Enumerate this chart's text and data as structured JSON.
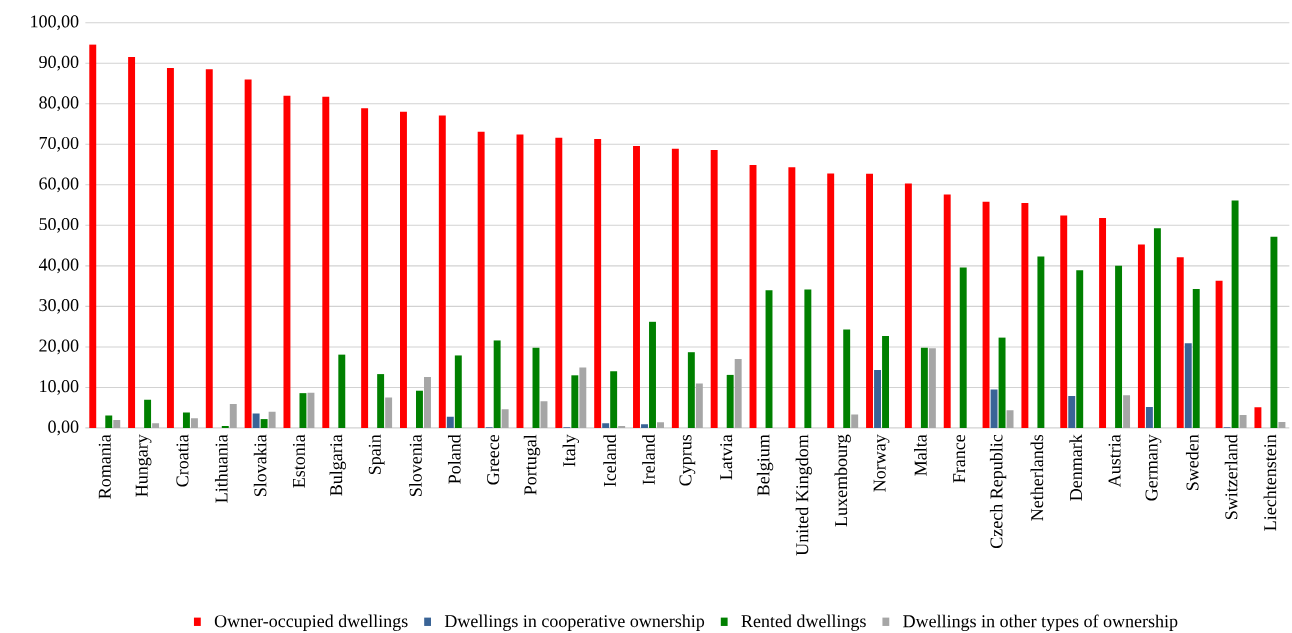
{
  "chart_data": {
    "type": "bar",
    "categories": [
      "Romania",
      "Hungary",
      "Croatia",
      "Lithuania",
      "Slovakia",
      "Estonia",
      "Bulgaria",
      "Spain",
      "Slovenia",
      "Poland",
      "Greece",
      "Portugal",
      "Italy",
      "Iceland",
      "Ireland",
      "Cyprus",
      "Latvia",
      "Belgium",
      "United Kingdom",
      "Luxembourg",
      "Norway",
      "Malta",
      "France",
      "Czech Republic",
      "Netherlands",
      "Denmark",
      "Austria",
      "Germany",
      "Sweden",
      "Switzerland",
      "Liechtenstein"
    ],
    "series": [
      {
        "name": "Owner-occupied dwellings",
        "color": "#ff0000",
        "values": [
          94.6,
          91.5,
          88.8,
          88.5,
          86.0,
          82.0,
          81.7,
          78.9,
          78.0,
          77.1,
          73.1,
          72.4,
          71.6,
          71.3,
          69.6,
          68.9,
          68.6,
          64.9,
          64.3,
          62.8,
          62.7,
          60.3,
          57.6,
          55.8,
          55.5,
          52.4,
          51.8,
          45.3,
          42.1,
          36.3,
          5.1
        ]
      },
      {
        "name": "Dwellings in cooperative ownership",
        "color": "#3a6496",
        "values": [
          null,
          null,
          null,
          null,
          3.6,
          null,
          null,
          null,
          null,
          2.8,
          0.2,
          null,
          0.2,
          1.2,
          0.9,
          null,
          null,
          null,
          null,
          null,
          14.3,
          null,
          null,
          9.5,
          null,
          7.9,
          null,
          5.2,
          20.9,
          0.2,
          null
        ]
      },
      {
        "name": "Rented dwellings",
        "color": "#008000",
        "values": [
          3.1,
          7.0,
          3.8,
          0.5,
          2.2,
          8.6,
          18.1,
          13.3,
          9.2,
          17.9,
          21.6,
          19.8,
          13.0,
          14.0,
          26.2,
          18.7,
          13.1,
          34.0,
          34.2,
          24.3,
          22.7,
          19.8,
          39.6,
          22.3,
          42.3,
          38.9,
          40.0,
          49.3,
          34.3,
          56.1,
          47.2
        ]
      },
      {
        "name": "Dwellings in other types of ownership",
        "color": "#a6a6a6",
        "values": [
          2.0,
          1.2,
          2.4,
          5.9,
          4.0,
          8.7,
          null,
          7.5,
          12.6,
          null,
          4.6,
          6.6,
          14.9,
          0.5,
          1.4,
          11.0,
          17.0,
          null,
          null,
          3.3,
          null,
          19.7,
          null,
          4.4,
          null,
          null,
          8.1,
          null,
          null,
          3.2,
          1.5
        ]
      }
    ],
    "ylim": [
      0,
      100
    ],
    "yticks": [
      {
        "value": 0,
        "label": "0,00"
      },
      {
        "value": 10,
        "label": "10,00"
      },
      {
        "value": 20,
        "label": "20,00"
      },
      {
        "value": 30,
        "label": "30,00"
      },
      {
        "value": 40,
        "label": "40,00"
      },
      {
        "value": 50,
        "label": "50,00"
      },
      {
        "value": 60,
        "label": "60,00"
      },
      {
        "value": 70,
        "label": "70,00"
      },
      {
        "value": 80,
        "label": "80,00"
      },
      {
        "value": 90,
        "label": "90,00"
      },
      {
        "value": 100,
        "label": "100,00"
      }
    ],
    "grid": "y",
    "legend": "bottom"
  }
}
